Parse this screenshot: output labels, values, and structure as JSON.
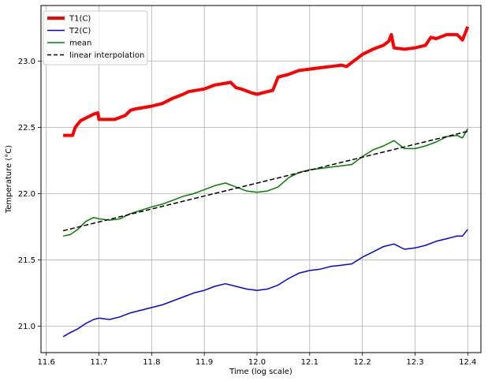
{
  "chart_data": {
    "type": "line",
    "title": "",
    "xlabel": "Time (log scale)",
    "ylabel": "Temperature (°C)",
    "xlim": [
      11.59,
      12.425
    ],
    "ylim": [
      20.8,
      23.42
    ],
    "x_ticks": [
      11.6,
      11.7,
      11.8,
      11.9,
      12.0,
      12.1,
      12.2,
      12.3,
      12.4
    ],
    "y_ticks": [
      21.0,
      21.5,
      22.0,
      22.5,
      23.0
    ],
    "x_tick_labels": [
      "11.6",
      "11.7",
      "11.8",
      "11.9",
      "12.0",
      "12.1",
      "12.2",
      "12.3",
      "12.4"
    ],
    "y_tick_labels": [
      "21.0",
      "21.5",
      "22.0",
      "22.5",
      "23.0"
    ],
    "grid": true,
    "legend_position": "top-left",
    "series": [
      {
        "name": "T1(C)",
        "color": "#ff0000",
        "style": "solid",
        "width": "thick",
        "x": [
          11.632,
          11.65,
          11.655,
          11.665,
          11.68,
          11.69,
          11.698,
          11.7,
          11.73,
          11.75,
          11.76,
          11.77,
          11.8,
          11.82,
          11.84,
          11.86,
          11.87,
          11.9,
          11.92,
          11.95,
          11.96,
          11.97,
          11.99,
          12.0,
          12.01,
          12.03,
          12.035,
          12.04,
          12.06,
          12.08,
          12.1,
          12.12,
          12.14,
          12.16,
          12.17,
          12.18,
          12.2,
          12.22,
          12.24,
          12.25,
          12.255,
          12.26,
          12.28,
          12.3,
          12.32,
          12.33,
          12.34,
          12.36,
          12.38,
          12.39,
          12.4
        ],
        "y": [
          22.44,
          22.44,
          22.5,
          22.55,
          22.58,
          22.6,
          22.61,
          22.56,
          22.56,
          22.59,
          22.63,
          22.64,
          22.66,
          22.68,
          22.72,
          22.75,
          22.77,
          22.79,
          22.82,
          22.84,
          22.8,
          22.79,
          22.76,
          22.75,
          22.76,
          22.78,
          22.83,
          22.88,
          22.9,
          22.93,
          22.94,
          22.95,
          22.96,
          22.97,
          22.96,
          22.99,
          23.05,
          23.09,
          23.12,
          23.15,
          23.2,
          23.1,
          23.09,
          23.1,
          23.12,
          23.18,
          23.17,
          23.2,
          23.2,
          23.16,
          23.26
        ]
      },
      {
        "name": "T2(C)",
        "color": "#0000ff",
        "style": "solid",
        "width": "normal",
        "x": [
          11.632,
          11.645,
          11.66,
          11.675,
          11.69,
          11.7,
          11.72,
          11.74,
          11.76,
          11.8,
          11.82,
          11.84,
          11.86,
          11.88,
          11.9,
          11.92,
          11.94,
          11.96,
          11.98,
          12.0,
          12.02,
          12.04,
          12.06,
          12.08,
          12.1,
          12.12,
          12.14,
          12.16,
          12.18,
          12.2,
          12.22,
          12.24,
          12.26,
          12.28,
          12.3,
          12.32,
          12.34,
          12.36,
          12.38,
          12.39,
          12.4
        ],
        "y": [
          20.92,
          20.95,
          20.98,
          21.02,
          21.05,
          21.06,
          21.05,
          21.07,
          21.1,
          21.14,
          21.16,
          21.19,
          21.22,
          21.25,
          21.27,
          21.3,
          21.32,
          21.3,
          21.28,
          21.27,
          21.28,
          21.31,
          21.36,
          21.4,
          21.42,
          21.43,
          21.45,
          21.46,
          21.47,
          21.52,
          21.56,
          21.6,
          21.62,
          21.58,
          21.59,
          21.61,
          21.64,
          21.66,
          21.68,
          21.68,
          21.73
        ]
      },
      {
        "name": "mean",
        "color": "#008000",
        "style": "solid",
        "width": "normal",
        "x": [
          11.632,
          11.645,
          11.66,
          11.675,
          11.69,
          11.7,
          11.72,
          11.74,
          11.76,
          11.8,
          11.82,
          11.84,
          11.86,
          11.88,
          11.9,
          11.92,
          11.94,
          11.96,
          11.98,
          12.0,
          12.02,
          12.04,
          12.06,
          12.08,
          12.1,
          12.12,
          12.14,
          12.16,
          12.18,
          12.2,
          12.22,
          12.24,
          12.26,
          12.28,
          12.3,
          12.32,
          12.34,
          12.36,
          12.38,
          12.39,
          12.4
        ],
        "y": [
          21.68,
          21.69,
          21.73,
          21.79,
          21.82,
          21.81,
          21.8,
          21.81,
          21.85,
          21.9,
          21.92,
          21.95,
          21.98,
          22.0,
          22.03,
          22.06,
          22.08,
          22.05,
          22.02,
          22.01,
          22.02,
          22.05,
          22.12,
          22.16,
          22.18,
          22.19,
          22.2,
          22.21,
          22.22,
          22.28,
          22.33,
          22.36,
          22.4,
          22.34,
          22.34,
          22.36,
          22.39,
          22.43,
          22.44,
          22.42,
          22.49
        ]
      },
      {
        "name": "linear interpolation",
        "color": "#000000",
        "style": "dashed",
        "width": "normal",
        "x": [
          11.632,
          12.4
        ],
        "y": [
          21.72,
          22.47
        ]
      }
    ]
  }
}
